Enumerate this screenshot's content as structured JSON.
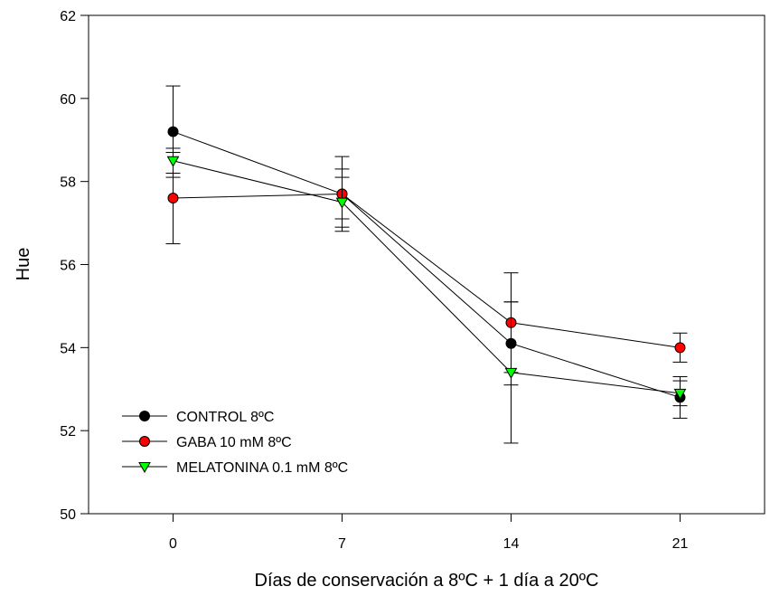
{
  "chart_data": {
    "type": "line",
    "xlabel": "Días de conservación a 8ºC + 1 día a 20ºC",
    "ylabel": "Hue",
    "x": [
      0,
      7,
      14,
      21
    ],
    "xticks": [
      "0",
      "7",
      "14",
      "21"
    ],
    "xlim": [
      -3.5,
      24.5
    ],
    "ylim": [
      50,
      62
    ],
    "yticks": [
      "50",
      "52",
      "54",
      "56",
      "58",
      "60",
      "62"
    ],
    "grid": false,
    "legend_position": "bottom-left",
    "series": [
      {
        "name": "CONTROL 8ºC",
        "marker": "circle",
        "color": "#000000",
        "values": [
          59.2,
          57.7,
          54.1,
          52.8
        ],
        "errors": [
          1.1,
          0.6,
          1.0,
          0.5
        ]
      },
      {
        "name": "GABA 10 mM 8ºC",
        "marker": "circle",
        "color": "#ff0000",
        "values": [
          57.6,
          57.7,
          54.6,
          54.0
        ],
        "errors": [
          1.1,
          0.9,
          1.2,
          0.35
        ]
      },
      {
        "name": "MELATONINA 0.1 mM 8ºC",
        "marker": "triangle-down",
        "color": "#00ff00",
        "values": [
          58.5,
          57.5,
          53.4,
          52.9
        ],
        "errors": [
          0.3,
          0.6,
          1.7,
          0.3
        ]
      }
    ]
  }
}
